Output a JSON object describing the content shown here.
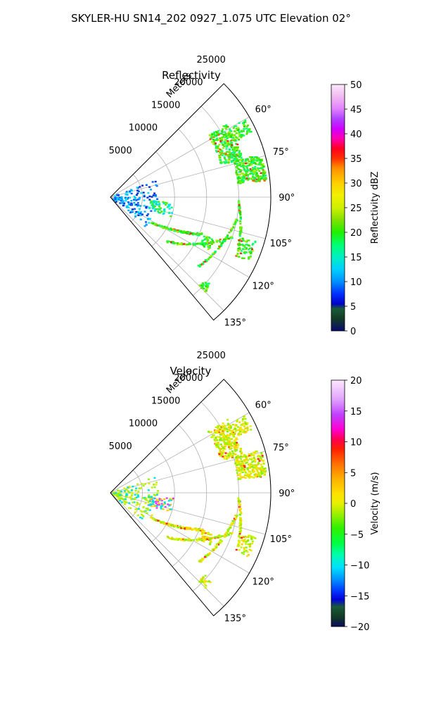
{
  "figure": {
    "title": "SKYLER-HU  SN14_202  0927_1.075 UTC Elevation 02°"
  },
  "chart_data": [
    {
      "type": "polar-ppi",
      "title": "Reflectivity",
      "radial_label": "Meters",
      "r_ticks": [
        "5000",
        "10000",
        "15000",
        "20000",
        "25000"
      ],
      "r_values": [
        5000,
        10000,
        15000,
        20000,
        25000
      ],
      "rlim": [
        0,
        25000
      ],
      "theta_ticks": [
        "60°",
        "75°",
        "90°",
        "105°",
        "120°",
        "135°"
      ],
      "theta_values": [
        60,
        75,
        90,
        105,
        120,
        135
      ],
      "theta_range_deg": [
        45,
        140
      ],
      "grid": true,
      "colorbar": {
        "label": "Reflectivity dBZ",
        "ticks": [
          "0",
          "5",
          "10",
          "15",
          "20",
          "25",
          "30",
          "35",
          "40",
          "45",
          "50"
        ],
        "range": [
          0,
          50
        ],
        "colormap": "pyart_NWSRef"
      }
    },
    {
      "type": "polar-ppi",
      "title": "Velocity",
      "radial_label": "Meters",
      "r_ticks": [
        "5000",
        "10000",
        "15000",
        "20000",
        "25000"
      ],
      "r_values": [
        5000,
        10000,
        15000,
        20000,
        25000
      ],
      "rlim": [
        0,
        25000
      ],
      "theta_ticks": [
        "60°",
        "75°",
        "90°",
        "105°",
        "120°",
        "135°"
      ],
      "theta_values": [
        60,
        75,
        90,
        105,
        120,
        135
      ],
      "theta_range_deg": [
        45,
        140
      ],
      "grid": true,
      "colorbar": {
        "label": "Velocity (m/s)",
        "ticks": [
          "−20",
          "−15",
          "−10",
          "−5",
          "0",
          "5",
          "10",
          "15",
          "20"
        ],
        "range": [
          -20,
          20
        ],
        "colormap": "pyart_NWSVel"
      }
    }
  ]
}
